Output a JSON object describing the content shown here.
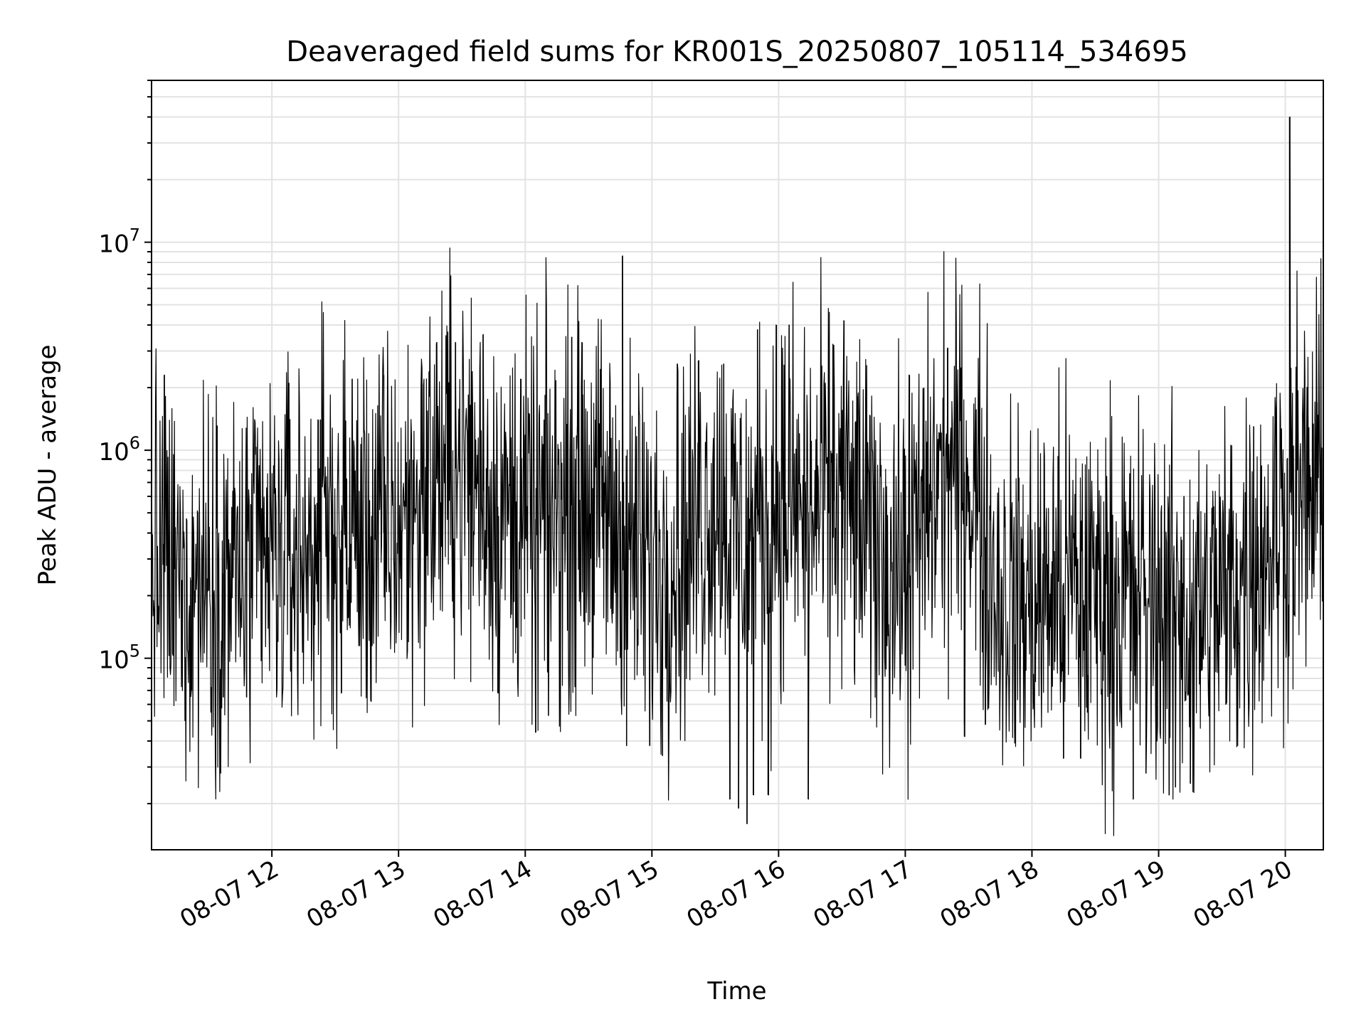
{
  "chart_data": {
    "type": "line",
    "title": "Deaveraged field sums for KR001S_20250807_105114_534695",
    "xlabel": "Time",
    "ylabel": "Peak ADU - average",
    "yscale": "log",
    "ylim": [
      12000,
      60000000
    ],
    "xlim": [
      "08-07 11:03",
      "08-07 20:18"
    ],
    "grid": true,
    "line_color": "#000000",
    "x_ticks": [
      "08-07 12",
      "08-07 13",
      "08-07 14",
      "08-07 15",
      "08-07 16",
      "08-07 17",
      "08-07 18",
      "08-07 19",
      "08-07 20"
    ],
    "y_ticks": [
      {
        "base": "10",
        "exp": "5",
        "value": 100000
      },
      {
        "base": "10",
        "exp": "6",
        "value": 1000000
      },
      {
        "base": "10",
        "exp": "7",
        "value": 10000000
      }
    ],
    "series": [
      {
        "x": [
          "08-07 11:03",
          "08-07 11:15",
          "08-07 11:30",
          "08-07 11:45",
          "08-07 12:00",
          "08-07 12:15",
          "08-07 12:30",
          "08-07 12:45",
          "08-07 13:00",
          "08-07 13:15",
          "08-07 13:30",
          "08-07 13:45",
          "08-07 14:00",
          "08-07 14:15",
          "08-07 14:30",
          "08-07 14:45",
          "08-07 15:00",
          "08-07 15:15",
          "08-07 15:30",
          "08-07 15:45",
          "08-07 16:00",
          "08-07 16:15",
          "08-07 16:30",
          "08-07 16:45",
          "08-07 17:00",
          "08-07 17:15",
          "08-07 17:30",
          "08-07 17:45",
          "08-07 18:00",
          "08-07 18:15",
          "08-07 18:30",
          "08-07 18:45",
          "08-07 19:00",
          "08-07 19:15",
          "08-07 19:30",
          "08-07 19:45",
          "08-07 20:00",
          "08-07 20:02",
          "08-07 20:10",
          "08-07 20:18"
        ],
        "values": [
          300000,
          220000,
          260000,
          250000,
          300000,
          320000,
          420000,
          380000,
          420000,
          700000,
          850000,
          550000,
          450000,
          500000,
          600000,
          400000,
          280000,
          350000,
          600000,
          350000,
          550000,
          500000,
          600000,
          350000,
          250000,
          700000,
          800000,
          200000,
          180000,
          230000,
          210000,
          200000,
          190000,
          150000,
          200000,
          280000,
          500000,
          40000000,
          600000,
          650000
        ],
        "spikes_high": [
          {
            "x": "08-07 11:09",
            "y": 2300000
          },
          {
            "x": "08-07 12:08",
            "y": 2100000
          },
          {
            "x": "08-07 12:23",
            "y": 1400000
          },
          {
            "x": "08-07 12:22",
            "y": 1400000
          },
          {
            "x": "08-07 12:38",
            "y": 2200000
          },
          {
            "x": "08-07 12:53",
            "y": 2300000
          },
          {
            "x": "08-07 13:11",
            "y": 2500000
          },
          {
            "x": "08-07 13:18",
            "y": 3300000
          },
          {
            "x": "08-07 13:27",
            "y": 3300000
          },
          {
            "x": "08-07 13:40",
            "y": 3600000
          },
          {
            "x": "08-07 13:58",
            "y": 2200000
          },
          {
            "x": "08-07 14:22",
            "y": 3500000
          },
          {
            "x": "08-07 14:27",
            "y": 3300000
          },
          {
            "x": "08-07 14:46",
            "y": 8600000
          },
          {
            "x": "08-07 15:12",
            "y": 2600000
          },
          {
            "x": "08-07 15:22",
            "y": 2700000
          },
          {
            "x": "08-07 15:34",
            "y": 2600000
          },
          {
            "x": "08-07 15:50",
            "y": 3800000
          },
          {
            "x": "08-07 15:59",
            "y": 4000000
          },
          {
            "x": "08-07 16:05",
            "y": 4000000
          },
          {
            "x": "08-07 16:26",
            "y": 3200000
          },
          {
            "x": "08-07 16:31",
            "y": 4200000
          },
          {
            "x": "08-07 17:02",
            "y": 2300000
          },
          {
            "x": "08-07 17:20",
            "y": 3100000
          },
          {
            "x": "08-07 17:35",
            "y": 1300000
          },
          {
            "x": "08-07 19:12",
            "y": 600000
          },
          {
            "x": "08-07 19:45",
            "y": 1300000
          },
          {
            "x": "08-07 20:02",
            "y": 40000000
          },
          {
            "x": "08-07 20:15",
            "y": 1700000
          }
        ],
        "spikes_low": [
          {
            "x": "08-07 11:22",
            "y": 70000
          },
          {
            "x": "08-07 11:37",
            "y": 65000
          },
          {
            "x": "08-07 11:48",
            "y": 65000
          },
          {
            "x": "08-07 12:33",
            "y": 68000
          },
          {
            "x": "08-07 12:47",
            "y": 62000
          },
          {
            "x": "08-07 13:47",
            "y": 68000
          },
          {
            "x": "08-07 14:05",
            "y": 44000
          },
          {
            "x": "08-07 14:11",
            "y": 53000
          },
          {
            "x": "08-07 14:48",
            "y": 38000
          },
          {
            "x": "08-07 14:59",
            "y": 38000
          },
          {
            "x": "08-07 15:05",
            "y": 34000
          },
          {
            "x": "08-07 15:37",
            "y": 21000
          },
          {
            "x": "08-07 15:41",
            "y": 19000
          },
          {
            "x": "08-07 15:45",
            "y": 16000
          },
          {
            "x": "08-07 15:48",
            "y": 22000
          },
          {
            "x": "08-07 15:55",
            "y": 22000
          },
          {
            "x": "08-07 16:14",
            "y": 21000
          },
          {
            "x": "08-07 17:28",
            "y": 42000
          },
          {
            "x": "08-07 17:38",
            "y": 48000
          },
          {
            "x": "08-07 18:15",
            "y": 33000
          },
          {
            "x": "08-07 18:23",
            "y": 33000
          },
          {
            "x": "08-07 18:48",
            "y": 21000
          },
          {
            "x": "08-07 18:54",
            "y": 28000
          },
          {
            "x": "08-07 19:05",
            "y": 22000
          },
          {
            "x": "08-07 19:08",
            "y": 24000
          },
          {
            "x": "08-07 19:15",
            "y": 25000
          },
          {
            "x": "08-07 19:32",
            "y": 60000
          }
        ]
      }
    ]
  }
}
